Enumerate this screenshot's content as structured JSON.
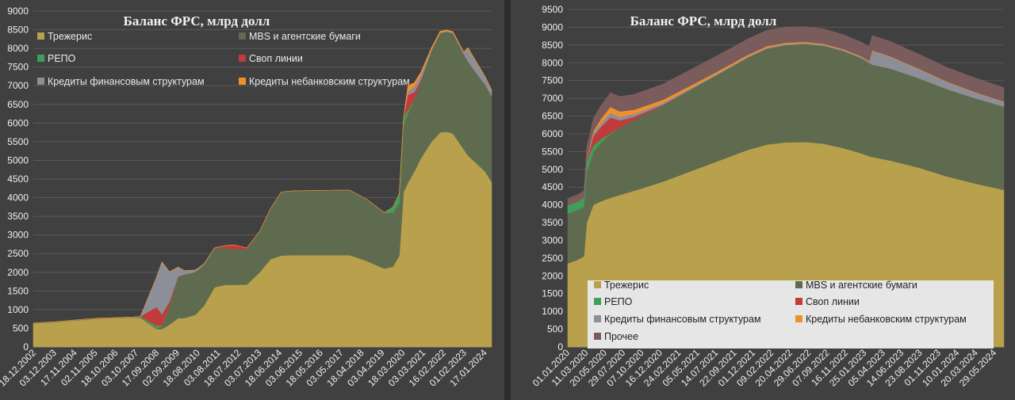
{
  "chart_data": [
    {
      "type": "area",
      "stacked": true,
      "title": "Баланс ФРС, млрд долл",
      "xlabel": "",
      "ylabel": "",
      "ylim": [
        0,
        9000
      ],
      "yticks": [
        0,
        500,
        1000,
        1500,
        2000,
        2500,
        3000,
        3500,
        4000,
        4500,
        5000,
        5500,
        6000,
        6500,
        7000,
        7500,
        8000,
        8500,
        9000
      ],
      "xtick_labels": [
        "18.12.2002",
        "03.12.2003",
        "17.11.2004",
        "02.11.2005",
        "18.10.2006",
        "03.10.2007",
        "17.09.2008",
        "02.09.2009",
        "18.08.2010",
        "03.08.2011",
        "18.07.2012",
        "03.07.2013",
        "18.06.2014",
        "03.06.2015",
        "18.05.2016",
        "03.05.2017",
        "18.04.2018",
        "03.04.2019",
        "18.03.2020",
        "03.03.2021",
        "16.02.2022",
        "01.02.2023",
        "17.01.2024"
      ],
      "grid": true,
      "legend_position": "top",
      "x": [
        2002.96,
        2004.0,
        2005.0,
        2006.0,
        2007.0,
        2007.6,
        2007.95,
        2008.7,
        2008.95,
        2009.3,
        2009.7,
        2010.0,
        2010.5,
        2010.9,
        2011.4,
        2011.9,
        2012.3,
        2012.9,
        2013.5,
        2014.0,
        2014.5,
        2015.0,
        2016.0,
        2017.0,
        2017.7,
        2018.5,
        2019.3,
        2019.7,
        2020.0,
        2020.2,
        2020.4,
        2020.7,
        2021.0,
        2021.5,
        2021.9,
        2022.2,
        2022.5,
        2023.0,
        2023.2,
        2023.5,
        2024.0,
        2024.3
      ],
      "series": [
        {
          "name": "Трежерис",
          "color": "#b8a04c",
          "values": [
            630,
            665,
            715,
            760,
            780,
            790,
            780,
            480,
            480,
            600,
            770,
            775,
            860,
            1100,
            1600,
            1665,
            1665,
            1670,
            2000,
            2350,
            2450,
            2460,
            2460,
            2460,
            2460,
            2300,
            2100,
            2150,
            2450,
            4150,
            4400,
            4700,
            5050,
            5500,
            5750,
            5770,
            5720,
            5300,
            5130,
            4970,
            4700,
            4420
          ]
        },
        {
          "name": "MBS и агентские бумаги",
          "color": "#5f6b4e",
          "values": [
            10,
            10,
            10,
            10,
            10,
            10,
            10,
            20,
            60,
            500,
            1100,
            1170,
            1150,
            1100,
            1050,
            1000,
            950,
            950,
            1100,
            1350,
            1700,
            1720,
            1730,
            1740,
            1740,
            1650,
            1500,
            1440,
            1400,
            1800,
            1850,
            1950,
            2050,
            2450,
            2660,
            2680,
            2690,
            2560,
            2520,
            2440,
            2330,
            2300
          ]
        },
        {
          "name": "РЕПО",
          "color": "#3f9f5a",
          "values": [
            0,
            0,
            0,
            0,
            0,
            0,
            30,
            70,
            40,
            15,
            0,
            0,
            0,
            0,
            0,
            0,
            0,
            0,
            0,
            0,
            0,
            0,
            0,
            0,
            0,
            0,
            0,
            150,
            250,
            200,
            100,
            0,
            0,
            0,
            0,
            0,
            0,
            0,
            0,
            0,
            0,
            0
          ]
        },
        {
          "name": "Своп линии",
          "color": "#c23a3a",
          "values": [
            0,
            0,
            0,
            0,
            0,
            0,
            0,
            500,
            300,
            100,
            20,
            0,
            0,
            0,
            0,
            50,
            120,
            30,
            0,
            0,
            0,
            0,
            0,
            0,
            0,
            0,
            0,
            0,
            0,
            0,
            400,
            180,
            50,
            0,
            0,
            0,
            0,
            0,
            0,
            0,
            0,
            0
          ]
        },
        {
          "name": "Кредиты финансовым структурам",
          "color": "#8c8f98",
          "values": [
            0,
            0,
            0,
            0,
            0,
            0,
            0,
            800,
            1400,
            800,
            250,
            100,
            50,
            20,
            5,
            0,
            0,
            0,
            0,
            0,
            0,
            0,
            0,
            0,
            0,
            0,
            0,
            0,
            0,
            0,
            100,
            150,
            150,
            30,
            20,
            20,
            20,
            20,
            350,
            300,
            200,
            150
          ]
        },
        {
          "name": "Кредиты небанковским структурам",
          "color": "#f0902a",
          "values": [
            0,
            0,
            0,
            0,
            0,
            0,
            0,
            0,
            0,
            0,
            0,
            0,
            0,
            0,
            0,
            0,
            0,
            0,
            0,
            0,
            0,
            0,
            0,
            0,
            0,
            0,
            0,
            0,
            0,
            0,
            150,
            100,
            60,
            40,
            30,
            25,
            20,
            20,
            20,
            15,
            10,
            10
          ]
        }
      ]
    },
    {
      "type": "area",
      "stacked": true,
      "title": "Баланс ФРС, млрд долл",
      "xlabel": "",
      "ylabel": "",
      "ylim": [
        0,
        9500
      ],
      "yticks": [
        0,
        500,
        1000,
        1500,
        2000,
        2500,
        3000,
        3500,
        4000,
        4500,
        5000,
        5500,
        6000,
        6500,
        7000,
        7500,
        8000,
        8500,
        9000,
        9500
      ],
      "xtick_labels": [
        "01.01.2020",
        "11.03.2020",
        "20.05.2020",
        "29.07.2020",
        "07.10.2020",
        "16.12.2020",
        "24.02.2021",
        "05.05.2021",
        "14.07.2021",
        "22.09.2021",
        "01.12.2021",
        "09.02.2022",
        "20.04.2022",
        "29.06.2022",
        "07.09.2022",
        "16.11.2022",
        "25.01.2023",
        "05.04.2023",
        "14.06.2023",
        "23.08.2023",
        "01.11.2023",
        "10.01.2024",
        "20.03.2024",
        "29.05.2024"
      ],
      "grid": true,
      "legend_position": "bottom",
      "x": [
        2020.0,
        2020.1,
        2020.17,
        2020.2,
        2020.27,
        2020.35,
        2020.45,
        2020.55,
        2020.7,
        2021.0,
        2021.3,
        2021.6,
        2021.9,
        2022.1,
        2022.3,
        2022.5,
        2022.7,
        2022.9,
        2023.1,
        2023.18,
        2023.21,
        2023.4,
        2023.7,
        2024.0,
        2024.3,
        2024.6
      ],
      "series": [
        {
          "name": "Трежерис",
          "color": "#b8a04c",
          "values": [
            2350,
            2450,
            2550,
            3500,
            4000,
            4100,
            4200,
            4280,
            4400,
            4650,
            4950,
            5250,
            5550,
            5700,
            5760,
            5770,
            5720,
            5600,
            5450,
            5370,
            5350,
            5250,
            5050,
            4800,
            4600,
            4420
          ]
        },
        {
          "name": "MBS и агентские бумаги",
          "color": "#5f6b4e",
          "values": [
            1400,
            1400,
            1400,
            1420,
            1500,
            1650,
            1800,
            1900,
            2000,
            2150,
            2300,
            2450,
            2600,
            2700,
            2740,
            2760,
            2760,
            2740,
            2680,
            2630,
            2600,
            2590,
            2520,
            2460,
            2400,
            2350
          ]
        },
        {
          "name": "РЕПО",
          "color": "#3f9f5a",
          "values": [
            230,
            230,
            250,
            300,
            180,
            100,
            20,
            0,
            0,
            0,
            0,
            0,
            0,
            0,
            0,
            0,
            0,
            0,
            0,
            0,
            0,
            0,
            0,
            0,
            0,
            0
          ]
        },
        {
          "name": "Своп линии",
          "color": "#c23a3a",
          "values": [
            0,
            0,
            0,
            50,
            250,
            350,
            440,
            200,
            80,
            15,
            5,
            0,
            0,
            0,
            0,
            0,
            0,
            0,
            0,
            0,
            0,
            0,
            0,
            0,
            0,
            0
          ]
        },
        {
          "name": "Кредиты финансовым структурам",
          "color": "#8c8f98",
          "values": [
            0,
            0,
            0,
            50,
            100,
            100,
            130,
            100,
            80,
            50,
            40,
            30,
            30,
            30,
            30,
            30,
            30,
            30,
            30,
            30,
            380,
            330,
            250,
            200,
            160,
            130
          ]
        },
        {
          "name": "Кредиты небанковским структурам",
          "color": "#f0902a",
          "values": [
            0,
            0,
            0,
            0,
            50,
            120,
            170,
            150,
            120,
            90,
            70,
            55,
            45,
            40,
            35,
            30,
            25,
            20,
            20,
            20,
            20,
            15,
            15,
            10,
            10,
            10
          ]
        },
        {
          "name": "Прочее",
          "color": "#7a5c5c",
          "values": [
            200,
            200,
            200,
            300,
            350,
            380,
            400,
            420,
            430,
            440,
            450,
            450,
            450,
            450,
            440,
            430,
            420,
            410,
            400,
            400,
            420,
            420,
            410,
            400,
            400,
            390
          ]
        }
      ]
    }
  ]
}
